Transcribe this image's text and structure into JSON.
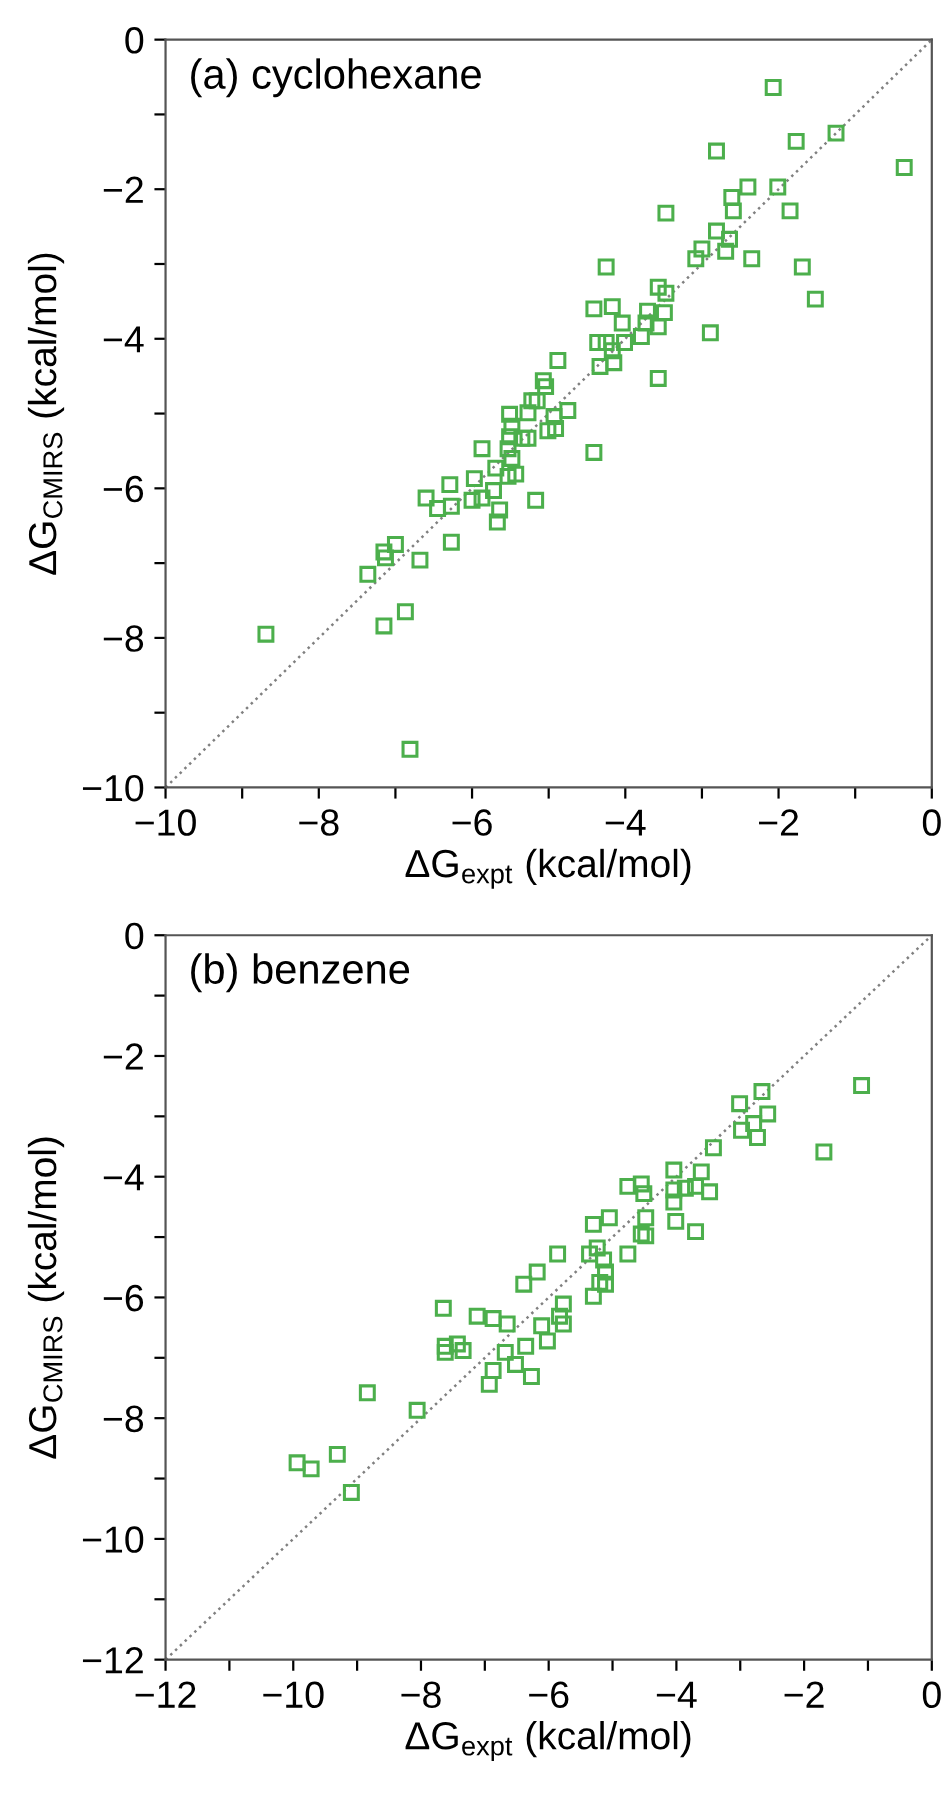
{
  "chart_data": [
    {
      "type": "scatter",
      "title": "(a) cyclohexane",
      "xlabel": "ΔG$_{expt}$ (kcal/mol)",
      "ylabel": "ΔG$_{CMIRS}$ (kcal/mol)",
      "xlim": [
        -10,
        0
      ],
      "ylim": [
        -10,
        0
      ],
      "xticks": [
        {
          "value": -10,
          "label": "−10"
        },
        {
          "value": -9,
          "label": null
        },
        {
          "value": -8,
          "label": "−8"
        },
        {
          "value": -7,
          "label": null
        },
        {
          "value": -6,
          "label": "−6"
        },
        {
          "value": -5,
          "label": null
        },
        {
          "value": -4,
          "label": "−4"
        },
        {
          "value": -3,
          "label": null
        },
        {
          "value": -2,
          "label": "−2"
        },
        {
          "value": -1,
          "label": null
        },
        0
      ],
      "yticks": [
        {
          "value": -10,
          "label": "−10"
        },
        {
          "value": -9,
          "label": null
        },
        {
          "value": -8,
          "label": "−8"
        },
        {
          "value": -7,
          "label": null
        },
        {
          "value": -6,
          "label": "−6"
        },
        {
          "value": -5,
          "label": null
        },
        {
          "value": -4,
          "label": "−4"
        },
        {
          "value": -3,
          "label": null
        },
        {
          "value": -2,
          "label": "−2"
        },
        {
          "value": -1,
          "label": null
        },
        0
      ],
      "grid": false,
      "legend": false,
      "marker": "square",
      "series": [
        {
          "type": "line",
          "color": "#808080",
          "line_style": "dotted",
          "marker": "none",
          "x": [
            -10,
            0
          ],
          "values": [
            -10,
            0
          ]
        },
        {
          "color": "#4caf4c",
          "x": [
            -2.07,
            -0.36,
            -1.25,
            -1.77,
            -2.81,
            -2.01,
            -2.4,
            -2.61,
            -2.59,
            -1.85,
            -3.47,
            -2.81,
            -2.64,
            -3.0,
            -2.69,
            -3.08,
            -2.35,
            -1.69,
            -4.25,
            -1.52,
            -3.57,
            -3.47,
            -4.41,
            -4.17,
            -3.71,
            -3.49,
            -4.04,
            -3.73,
            -3.57,
            -2.89,
            -3.79,
            -4.36,
            -4.25,
            -4.01,
            -4.17,
            -4.88,
            -4.33,
            -4.15,
            -3.57,
            -5.07,
            -5.04,
            -5.22,
            -5.15,
            -5.51,
            -5.27,
            -4.93,
            -4.75,
            -5.48,
            -5.01,
            -4.91,
            -5.51,
            -5.35,
            -5.27,
            -5.87,
            -5.53,
            -5.48,
            -4.41,
            -5.69,
            -6.29,
            -5.97,
            -5.72,
            -5.53,
            -5.43,
            -6.6,
            -6.0,
            -5.87,
            -6.45,
            -6.27,
            -5.64,
            -5.17,
            -5.67,
            -6.27,
            -7.0,
            -7.15,
            -7.13,
            -6.68,
            -7.36,
            -6.87,
            -7.15,
            -8.69,
            -6.81
          ],
          "values": [
            -0.64,
            -1.71,
            -1.25,
            -1.36,
            -1.49,
            -1.97,
            -1.97,
            -2.11,
            -2.29,
            -2.29,
            -2.32,
            -2.56,
            -2.67,
            -2.8,
            -2.83,
            -2.93,
            -2.93,
            -3.04,
            -3.04,
            -3.47,
            -3.31,
            -3.39,
            -3.6,
            -3.57,
            -3.63,
            -3.65,
            -3.79,
            -3.79,
            -3.84,
            -3.92,
            -3.97,
            -4.05,
            -4.05,
            -4.05,
            -4.16,
            -4.29,
            -4.37,
            -4.32,
            -4.53,
            -4.56,
            -4.64,
            -4.83,
            -4.83,
            -5.01,
            -4.99,
            -5.04,
            -4.96,
            -5.17,
            -5.23,
            -5.2,
            -5.31,
            -5.33,
            -5.33,
            -5.47,
            -5.47,
            -5.6,
            -5.52,
            -5.73,
            -5.95,
            -5.87,
            -6.03,
            -5.84,
            -5.81,
            -6.13,
            -6.16,
            -6.13,
            -6.27,
            -6.24,
            -6.29,
            -6.16,
            -6.45,
            -6.72,
            -6.75,
            -6.85,
            -6.93,
            -6.96,
            -7.15,
            -7.65,
            -7.84,
            -7.95,
            -9.49
          ]
        }
      ]
    },
    {
      "type": "scatter",
      "title": "(b) benzene",
      "xlabel": "ΔG$_{expt}$ (kcal/mol)",
      "ylabel": "ΔG$_{CMIRS}$ (kcal/mol)",
      "xlim": [
        -12,
        0
      ],
      "ylim": [
        -12,
        0
      ],
      "xticks": [
        {
          "value": -12,
          "label": "−12"
        },
        {
          "value": -11,
          "label": null
        },
        {
          "value": -10,
          "label": "−10"
        },
        {
          "value": -9,
          "label": null
        },
        {
          "value": -8,
          "label": "−8"
        },
        {
          "value": -7,
          "label": null
        },
        {
          "value": -6,
          "label": "−6"
        },
        {
          "value": -5,
          "label": null
        },
        {
          "value": -4,
          "label": "−4"
        },
        {
          "value": -3,
          "label": null
        },
        {
          "value": -2,
          "label": "−2"
        },
        {
          "value": -1,
          "label": null
        },
        0
      ],
      "yticks": [
        {
          "value": -12,
          "label": "−12"
        },
        {
          "value": -11,
          "label": null
        },
        {
          "value": -10,
          "label": "−10"
        },
        {
          "value": -9,
          "label": null
        },
        {
          "value": -8,
          "label": "−8"
        },
        {
          "value": -7,
          "label": null
        },
        {
          "value": -6,
          "label": "−6"
        },
        {
          "value": -5,
          "label": null
        },
        {
          "value": -4,
          "label": "−4"
        },
        {
          "value": -3,
          "label": null
        },
        {
          "value": -2,
          "label": "−2"
        },
        {
          "value": -1,
          "label": null
        },
        0
      ],
      "grid": false,
      "legend": false,
      "marker": "square",
      "series": [
        {
          "type": "line",
          "color": "#808080",
          "line_style": "dotted",
          "marker": "none",
          "x": [
            -12,
            0
          ],
          "values": [
            -12,
            0
          ]
        },
        {
          "color": "#4caf4c",
          "x": [
            -1.1,
            -2.66,
            -3.01,
            -2.57,
            -2.79,
            -2.98,
            -2.73,
            -1.69,
            -3.42,
            -4.04,
            -3.61,
            -4.76,
            -4.55,
            -4.51,
            -4.04,
            -3.86,
            -3.7,
            -3.48,
            -4.04,
            -5.05,
            -5.3,
            -4.48,
            -4.01,
            -3.7,
            -4.55,
            -4.48,
            -5.86,
            -5.24,
            -5.36,
            -4.76,
            -5.14,
            -6.18,
            -6.39,
            -5.11,
            -5.2,
            -5.11,
            -5.3,
            -5.77,
            -7.65,
            -7.12,
            -6.87,
            -6.65,
            -6.11,
            -5.83,
            -5.77,
            -6.02,
            -7.62,
            -7.43,
            -7.34,
            -7.62,
            -6.68,
            -6.36,
            -6.52,
            -6.87,
            -6.93,
            -6.27,
            -8.84,
            -8.06,
            -9.94,
            -9.72,
            -9.31,
            -9.09
          ],
          "values": [
            -2.49,
            -2.59,
            -2.79,
            -2.96,
            -3.12,
            -3.23,
            -3.35,
            -3.59,
            -3.52,
            -3.89,
            -3.92,
            -4.16,
            -4.12,
            -4.28,
            -4.22,
            -4.19,
            -4.16,
            -4.25,
            -4.42,
            -4.68,
            -4.79,
            -4.68,
            -4.74,
            -4.91,
            -4.95,
            -4.98,
            -5.28,
            -5.18,
            -5.28,
            -5.28,
            -5.38,
            -5.58,
            -5.78,
            -5.58,
            -5.75,
            -5.78,
            -5.98,
            -6.11,
            -6.18,
            -6.31,
            -6.35,
            -6.44,
            -6.47,
            -6.31,
            -6.44,
            -6.72,
            -6.81,
            -6.77,
            -6.88,
            -6.91,
            -6.91,
            -6.81,
            -7.11,
            -7.21,
            -7.44,
            -7.31,
            -7.58,
            -7.87,
            -8.74,
            -8.84,
            -8.6,
            -9.23
          ]
        }
      ]
    }
  ]
}
